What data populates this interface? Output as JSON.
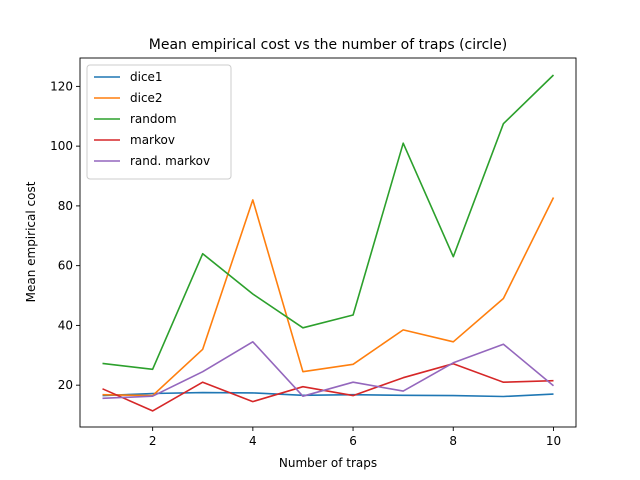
{
  "chart_data": {
    "type": "line",
    "title": "Mean empirical cost vs the number of traps (circle)",
    "xlabel": "Number of traps",
    "ylabel": "Mean empirical cost",
    "x": [
      1,
      2,
      3,
      4,
      5,
      6,
      7,
      8,
      9,
      10
    ],
    "xlim": [
      0.55,
      10.45
    ],
    "ylim": [
      6.0,
      129.5
    ],
    "xticks": [
      2,
      4,
      6,
      8,
      10
    ],
    "yticks": [
      20,
      40,
      60,
      80,
      100,
      120
    ],
    "grid": false,
    "legend_position": "top-left",
    "series": [
      {
        "name": "dice1",
        "color": "#1f77b4",
        "values": [
          16.5,
          17.2,
          17.5,
          17.4,
          16.6,
          16.8,
          16.6,
          16.5,
          16.2,
          17.0
        ]
      },
      {
        "name": "dice2",
        "color": "#ff7f0e",
        "values": [
          16.8,
          16.5,
          32.0,
          82.0,
          24.5,
          27.0,
          38.5,
          34.5,
          49.0,
          82.8
        ]
      },
      {
        "name": "random",
        "color": "#2ca02c",
        "values": [
          27.3,
          25.3,
          64.0,
          50.5,
          39.2,
          43.5,
          101.0,
          63.0,
          107.5,
          123.8
        ]
      },
      {
        "name": "markov",
        "color": "#d62728",
        "values": [
          18.8,
          11.4,
          21.0,
          14.5,
          19.5,
          16.5,
          22.5,
          27.2,
          21.0,
          21.5
        ]
      },
      {
        "name": "rand. markov",
        "color": "#9467bd",
        "values": [
          15.6,
          16.3,
          24.5,
          34.5,
          16.3,
          21.0,
          18.0,
          27.5,
          33.7,
          19.8
        ]
      }
    ]
  }
}
